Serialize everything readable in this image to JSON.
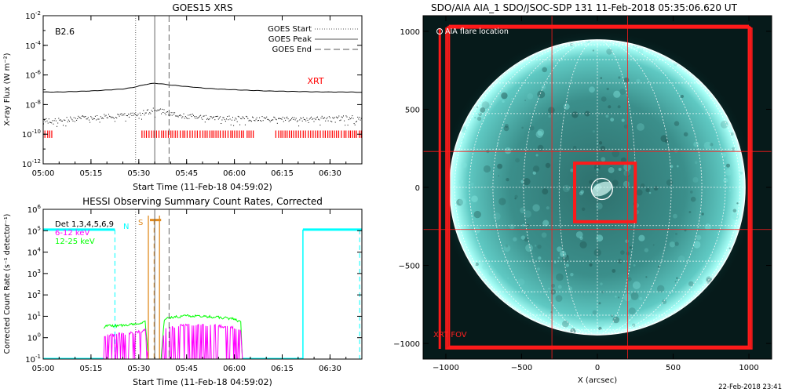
{
  "footer_timestamp": "22-Feb-2018 23:41",
  "chart_data": [
    {
      "type": "line",
      "title": "GOES15 XRS",
      "xlabel": "Start Time (11-Feb-18 04:59:02)",
      "ylabel": "X-ray Flux (W m⁻²)",
      "y_scale": "log",
      "ylim_exp": [
        -12,
        -2
      ],
      "xlim_min": [
        0,
        100
      ],
      "x_ticks": [
        {
          "m": 0,
          "label": "05:00"
        },
        {
          "m": 15,
          "label": "05:15"
        },
        {
          "m": 30,
          "label": "05:30"
        },
        {
          "m": 45,
          "label": "05:45"
        },
        {
          "m": 60,
          "label": "06:00"
        },
        {
          "m": 75,
          "label": "06:15"
        },
        {
          "m": 90,
          "label": "06:30"
        }
      ],
      "y_ticks": [
        {
          "exp": -2,
          "label": "10",
          "sup": "-2"
        },
        {
          "exp": -4,
          "label": "10",
          "sup": "-4"
        },
        {
          "exp": -6,
          "label": "10",
          "sup": "-6"
        },
        {
          "exp": -8,
          "label": "10",
          "sup": "-8"
        },
        {
          "exp": -10,
          "label": "10",
          "sup": "-10"
        },
        {
          "exp": -12,
          "label": "10",
          "sup": "-12"
        }
      ],
      "class_label": "B2.6",
      "legend": [
        {
          "label": "GOES Start",
          "style": "dotted"
        },
        {
          "label": "GOES Peak",
          "style": "solid"
        },
        {
          "label": "GOES End",
          "style": "dashed"
        }
      ],
      "xrt_label": "XRT",
      "goes_times_min": {
        "start": 29,
        "peak": 35,
        "end": 39.5
      },
      "series": [
        {
          "name": "long",
          "color": "#000000",
          "style": "solid",
          "x": [
            0,
            5,
            10,
            15,
            20,
            25,
            28,
            30,
            32,
            34,
            35,
            37,
            40,
            45,
            50,
            55,
            60,
            65,
            70,
            75,
            80,
            85,
            90,
            95,
            100
          ],
          "y_exp": [
            -7.15,
            -7.15,
            -7.12,
            -7.08,
            -7.02,
            -6.95,
            -6.85,
            -6.75,
            -6.65,
            -6.58,
            -6.56,
            -6.6,
            -6.68,
            -6.78,
            -6.88,
            -6.95,
            -7.0,
            -7.04,
            -7.08,
            -7.1,
            -7.12,
            -7.14,
            -7.15,
            -7.15,
            -7.17
          ]
        },
        {
          "name": "short",
          "color": "#000000",
          "style": "noisy",
          "x": [
            0,
            5,
            10,
            15,
            20,
            25,
            28,
            30,
            32,
            34,
            35,
            37,
            40,
            45,
            50,
            55,
            60,
            65,
            70,
            75,
            80,
            85,
            90,
            95,
            100
          ],
          "y_exp": [
            -9.1,
            -9.05,
            -8.95,
            -8.85,
            -8.8,
            -8.75,
            -8.7,
            -8.6,
            -8.5,
            -8.4,
            -8.35,
            -8.45,
            -8.6,
            -8.75,
            -8.85,
            -8.9,
            -8.92,
            -8.95,
            -8.95,
            -8.98,
            -8.97,
            -8.95,
            -8.92,
            -8.9,
            -8.9
          ]
        }
      ],
      "xrt_coverage_min": [
        [
          0,
          3
        ],
        [
          31,
          63
        ],
        [
          64,
          66
        ],
        [
          73,
          100
        ]
      ]
    },
    {
      "type": "line",
      "title": "HESSI Observing Summary Count Rates, Corrected",
      "xlabel": "Start Time (11-Feb-18 04:59:02)",
      "ylabel": "Corrected Count Rate (s⁻¹ detector⁻¹)",
      "y_scale": "log",
      "ylim_exp": [
        -1,
        6
      ],
      "xlim_min": [
        0,
        100
      ],
      "x_ticks": [
        {
          "m": 0,
          "label": "05:00"
        },
        {
          "m": 15,
          "label": "05:15"
        },
        {
          "m": 30,
          "label": "05:30"
        },
        {
          "m": 45,
          "label": "05:45"
        },
        {
          "m": 60,
          "label": "06:00"
        },
        {
          "m": 75,
          "label": "06:15"
        },
        {
          "m": 90,
          "label": "06:30"
        }
      ],
      "y_ticks": [
        {
          "exp": 6,
          "label": "10",
          "sup": "6"
        },
        {
          "exp": 5,
          "label": "10",
          "sup": "5"
        },
        {
          "exp": 4,
          "label": "10",
          "sup": "4"
        },
        {
          "exp": 3,
          "label": "10",
          "sup": "3"
        },
        {
          "exp": 2,
          "label": "10",
          "sup": "2"
        },
        {
          "exp": 1,
          "label": "10",
          "sup": "1"
        },
        {
          "exp": 0,
          "label": "10",
          "sup": "0"
        },
        {
          "exp": -1,
          "label": "10",
          "sup": "-1"
        }
      ],
      "legend": [
        {
          "label": "Det 1,3,4,5,6,9",
          "color": "#000000"
        },
        {
          "label": "6-12 keV",
          "color": "#ff00ff"
        },
        {
          "label": "12-25 keV",
          "color": "#00ff00"
        }
      ],
      "flag_labels": {
        "N": "N",
        "S": "S"
      },
      "goes_times_min": {
        "start": 29,
        "peak": 35,
        "end": 39.5
      },
      "night_intervals_min": [
        [
          0,
          22.5
        ],
        [
          81.5,
          100
        ]
      ],
      "night_level_exp": 5.05,
      "saa_markers_min": [
        33,
        36.5
      ],
      "series": [
        {
          "name": "12-25 keV",
          "color": "#00ff00",
          "x": [
            19,
            20,
            23,
            26,
            29,
            31,
            32,
            33,
            37,
            38,
            40,
            45,
            50,
            55,
            60,
            61.5,
            62,
            62.5
          ],
          "y_exp": [
            0.5,
            0.55,
            0.55,
            0.6,
            0.65,
            0.7,
            0.75,
            -1,
            -1,
            0.85,
            0.95,
            1.02,
            1.0,
            0.95,
            0.88,
            0.75,
            0.7,
            -1
          ]
        },
        {
          "name": "6-12 keV",
          "color": "#ff00ff",
          "x": [
            19,
            20,
            23,
            26,
            29,
            31,
            32,
            33,
            37,
            38,
            40,
            45,
            50,
            55,
            60,
            61.5,
            62,
            62.5
          ],
          "y_exp": [
            0.05,
            0.1,
            0.15,
            0.2,
            0.25,
            0.3,
            0.35,
            -1,
            -1,
            0.45,
            0.5,
            0.6,
            0.6,
            0.55,
            0.45,
            0.35,
            0.3,
            -1
          ]
        }
      ]
    },
    {
      "type": "heatmap",
      "title": "SDO/AIA AIA_1 SDO/JSOC-SDP 131 11-Feb-2018 05:35:06.620 UT",
      "xlabel": "X (arcsec)",
      "ylabel": "",
      "xlim": [
        -1150,
        1150
      ],
      "ylim": [
        -1100,
        1100
      ],
      "x_ticks": [
        -1000,
        -500,
        0,
        500,
        1000
      ],
      "x_tick_labels": [
        "−1000",
        "−500",
        "0",
        "500",
        "1000"
      ],
      "y_ticks": [
        -1000,
        -500,
        0,
        500,
        1000
      ],
      "y_tick_labels": [
        "−1000",
        "−500",
        "0",
        "500",
        "1000"
      ],
      "solar_radius_arcsec": 975,
      "colormap": "teal",
      "annotations": {
        "flare_location": "AIA flare location",
        "xrt_fov": "XRT FOV"
      },
      "flare_center_arcsec": [
        30,
        -10
      ],
      "flare_radius_arcsec": 70,
      "xrt_fov_arcsec": {
        "x0": -1000,
        "x1": 1020,
        "y0": -1035,
        "y1": 1020
      },
      "xrt_box_arcsec": {
        "x0": -150,
        "x1": 250,
        "y0": -220,
        "y1": 155
      },
      "xrt_grid_lines_arcsec": {
        "x": [
          -300,
          200
        ],
        "y": [
          230,
          -270
        ]
      }
    }
  ]
}
